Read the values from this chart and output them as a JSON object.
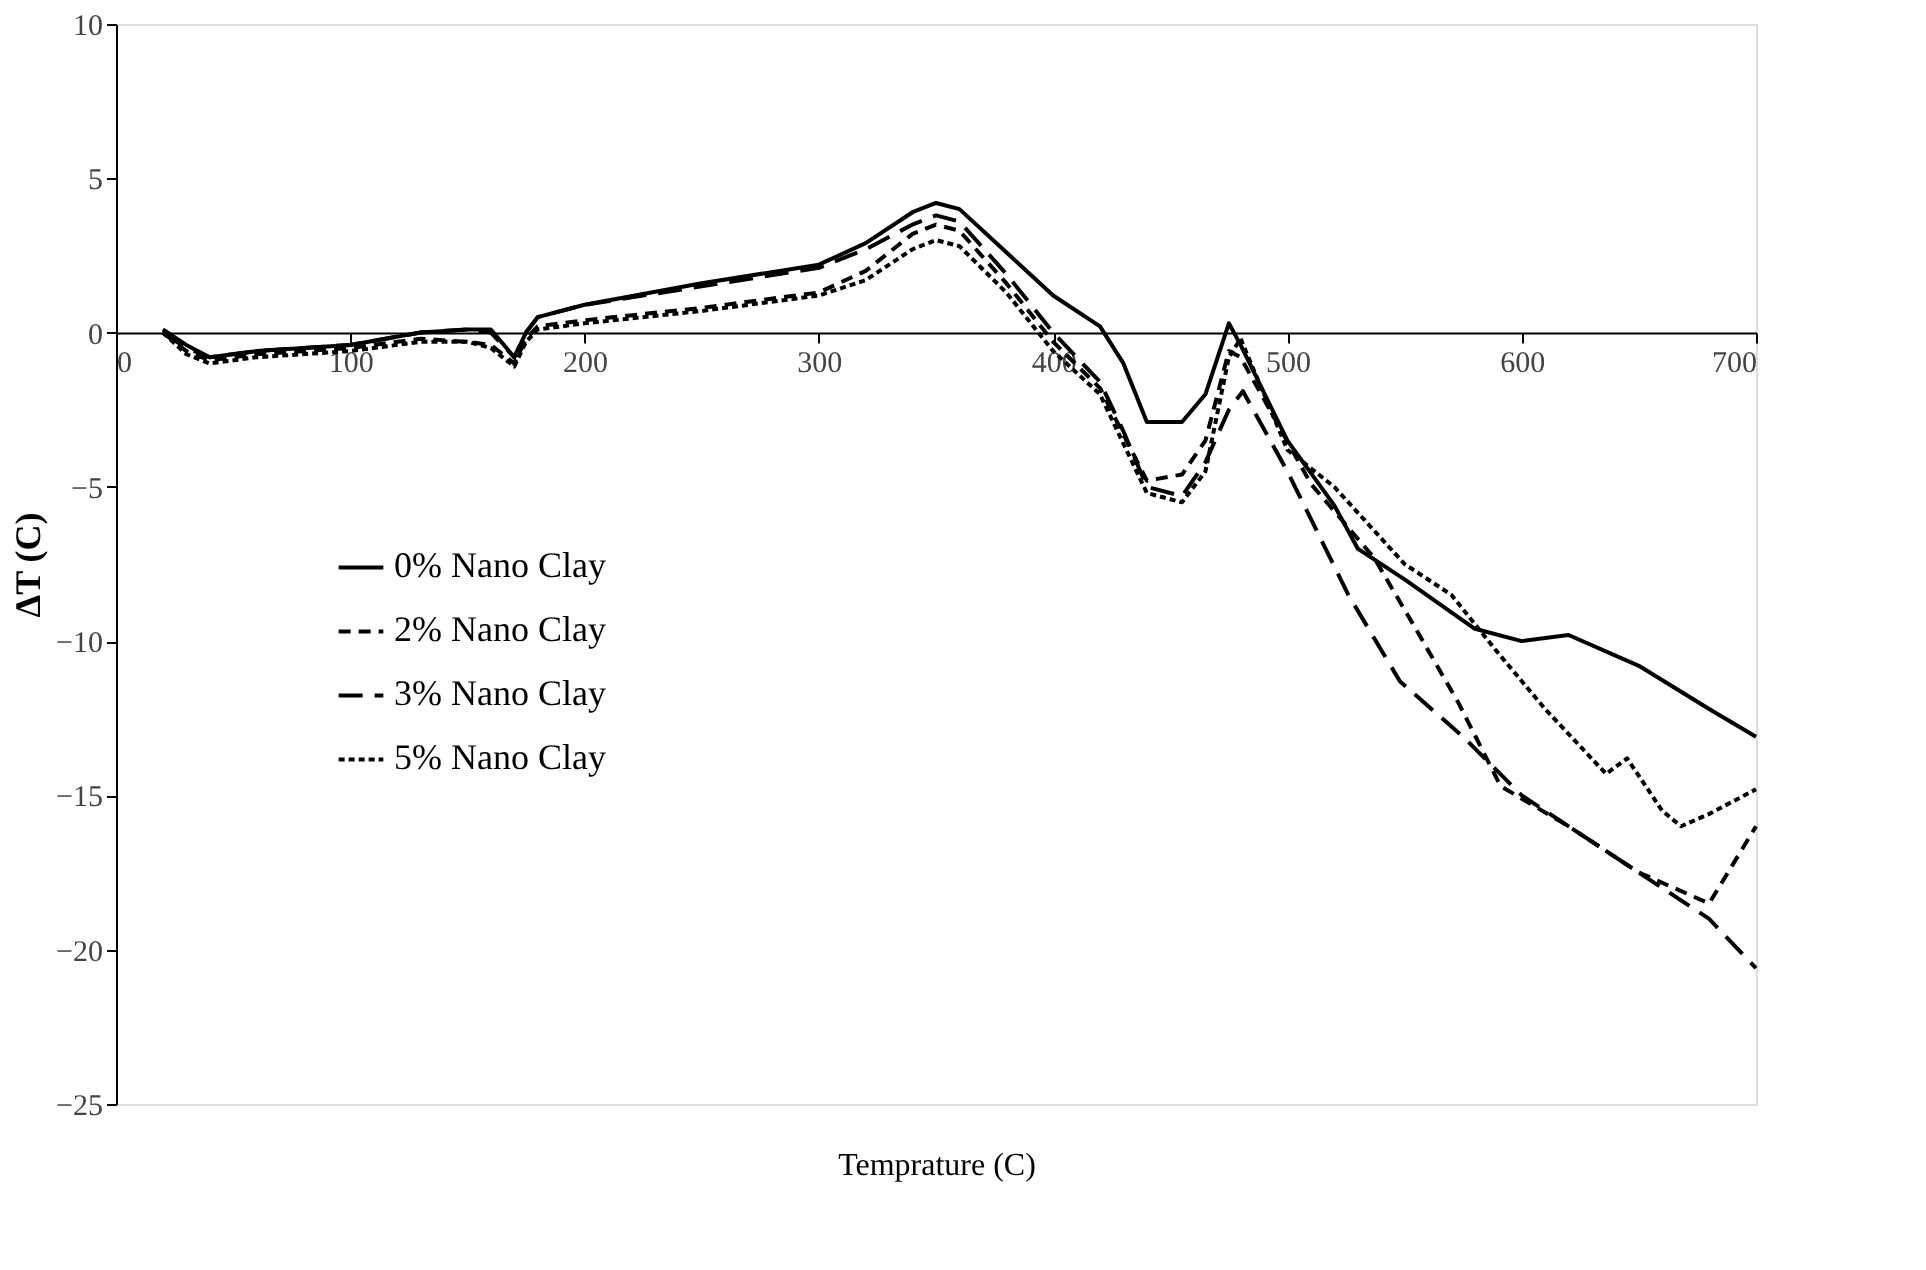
{
  "chart_data": {
    "type": "line",
    "xlabel": "Temprature (C)",
    "ylabel": "ΔT (C)",
    "xlim": [
      0,
      700
    ],
    "ylim": [
      -25,
      10
    ],
    "xticks": [
      0,
      100,
      200,
      300,
      400,
      500,
      600,
      700
    ],
    "yticks": [
      -25,
      -20,
      -15,
      -10,
      -5,
      0,
      5,
      10
    ],
    "grid": false,
    "legend": "left",
    "marker": "none",
    "series": [
      {
        "name": "0% Nano Clay",
        "color": "#000000",
        "line_style": "solid",
        "x": [
          20,
          30,
          40,
          60,
          100,
          130,
          150,
          160,
          170,
          175,
          180,
          200,
          250,
          300,
          320,
          340,
          350,
          360,
          380,
          400,
          420,
          430,
          440,
          455,
          465,
          475,
          480,
          500,
          520,
          530,
          550,
          580,
          600,
          620,
          650,
          680,
          700
        ],
        "values": [
          0.1,
          -0.4,
          -0.8,
          -0.6,
          -0.4,
          0,
          0.1,
          0.1,
          -0.8,
          0,
          0.5,
          0.9,
          1.6,
          2.2,
          2.9,
          3.9,
          4.2,
          4,
          2.6,
          1.2,
          0.2,
          -1,
          -2.9,
          -2.9,
          -2,
          0.3,
          -0.4,
          -3.5,
          -5.6,
          -7,
          -8,
          -9.6,
          -10,
          -9.8,
          -10.8,
          -12.2,
          -13.1
        ]
      },
      {
        "name": "2% Nano Clay",
        "color": "#000000",
        "line_style": "dashed",
        "x": [
          20,
          30,
          40,
          60,
          100,
          130,
          150,
          160,
          170,
          175,
          180,
          200,
          250,
          300,
          320,
          340,
          350,
          360,
          380,
          400,
          420,
          430,
          440,
          455,
          465,
          475,
          480,
          510,
          537,
          554,
          573,
          591,
          620,
          650,
          680,
          700
        ],
        "values": [
          0,
          -0.6,
          -0.9,
          -0.7,
          -0.5,
          -0.2,
          -0.3,
          -0.4,
          -1,
          -0.2,
          0.2,
          0.4,
          0.8,
          1.3,
          2,
          3.2,
          3.5,
          3.3,
          1.6,
          -0.3,
          -1.8,
          -3.3,
          -4.8,
          -4.6,
          -3.5,
          -0.6,
          -0.8,
          -4.9,
          -7.3,
          -9.5,
          -12,
          -14.7,
          -16,
          -17.5,
          -18.5,
          -16
        ]
      },
      {
        "name": "3% Nano Clay",
        "color": "#000000",
        "line_style": "longdash",
        "x": [
          20,
          30,
          40,
          60,
          100,
          130,
          150,
          160,
          170,
          175,
          180,
          200,
          250,
          300,
          320,
          340,
          350,
          360,
          380,
          400,
          420,
          430,
          440,
          455,
          465,
          475,
          481,
          500,
          526,
          548,
          575,
          600,
          650,
          680,
          700
        ],
        "values": [
          0,
          -0.5,
          -0.8,
          -0.6,
          -0.4,
          0,
          0.1,
          0,
          -0.8,
          0,
          0.5,
          0.9,
          1.5,
          2.1,
          2.7,
          3.5,
          3.8,
          3.6,
          1.9,
          0,
          -1.6,
          -3.2,
          -5,
          -5.3,
          -4.2,
          -2.5,
          -1.9,
          -4.5,
          -8.5,
          -11.3,
          -13.1,
          -15,
          -17.5,
          -19,
          -20.6
        ]
      },
      {
        "name": "5% Nano Clay",
        "color": "#000000",
        "line_style": "dotted",
        "x": [
          20,
          30,
          40,
          60,
          100,
          130,
          150,
          160,
          170,
          175,
          180,
          200,
          250,
          300,
          320,
          340,
          350,
          360,
          380,
          400,
          420,
          430,
          440,
          455,
          465,
          475,
          480,
          500,
          520,
          550,
          570,
          589,
          610,
          636,
          645,
          660,
          668,
          680,
          700
        ],
        "values": [
          0,
          -0.7,
          -1,
          -0.8,
          -0.6,
          -0.3,
          -0.3,
          -0.5,
          -1.1,
          -0.3,
          0.1,
          0.3,
          0.7,
          1.2,
          1.7,
          2.7,
          3,
          2.8,
          1.3,
          -0.6,
          -2,
          -3.6,
          -5.2,
          -5.5,
          -4.5,
          -0.8,
          -0.2,
          -3.8,
          -5,
          -7.5,
          -8.5,
          -10.3,
          -12.2,
          -14.3,
          -13.8,
          -15.5,
          -16,
          -15.6,
          -14.8
        ]
      }
    ]
  }
}
